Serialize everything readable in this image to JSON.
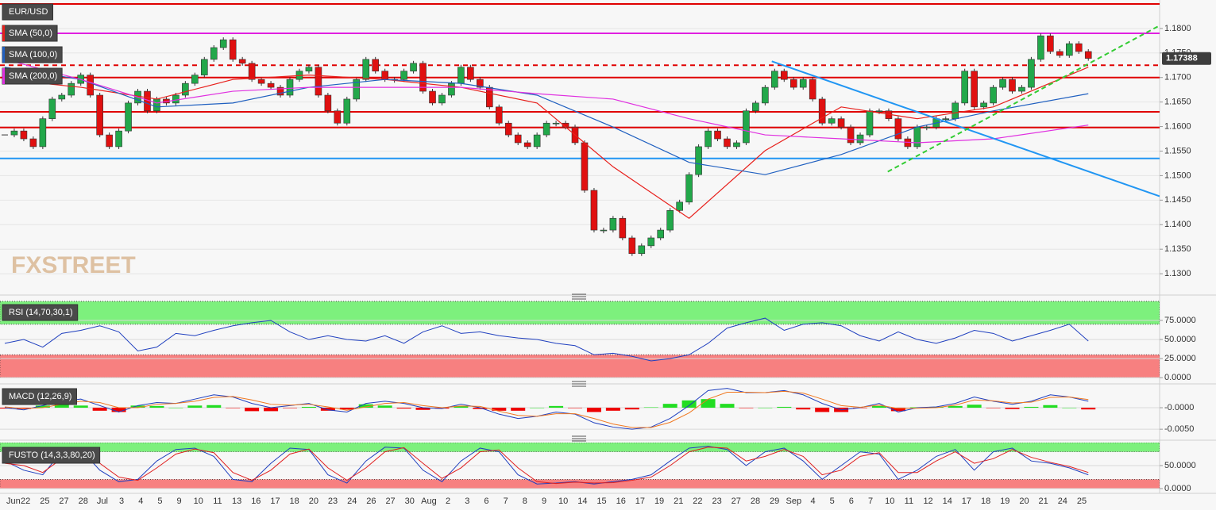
{
  "chart_data": [
    {
      "type": "candlestick",
      "symbol": "EUR/USD",
      "watermark": "FXSTREET",
      "up_color": "#22a84a",
      "down_color": "#e01010",
      "closes": [
        1.1583,
        1.1591,
        1.1575,
        1.1559,
        1.1616,
        1.1656,
        1.1664,
        1.1688,
        1.1705,
        1.1664,
        1.1583,
        1.1559,
        1.1591,
        1.1648,
        1.1672,
        1.1632,
        1.1656,
        1.1648,
        1.1664,
        1.1688,
        1.1705,
        1.1737,
        1.1761,
        1.1777,
        1.1737,
        1.1729,
        1.1696,
        1.1688,
        1.168,
        1.1664,
        1.1696,
        1.1713,
        1.1721,
        1.1664,
        1.1632,
        1.1607,
        1.1656,
        1.1696,
        1.1737,
        1.1713,
        1.1696,
        1.1696,
        1.1713,
        1.1729,
        1.1672,
        1.1648,
        1.1664,
        1.1688,
        1.1721,
        1.1696,
        1.168,
        1.164,
        1.1607,
        1.1583,
        1.1567,
        1.1559,
        1.1583,
        1.1607,
        1.1607,
        1.1599,
        1.1567,
        1.147,
        1.1389,
        1.1389,
        1.1413,
        1.1373,
        1.1341,
        1.1357,
        1.1373,
        1.1389,
        1.1429,
        1.1446,
        1.1502,
        1.1559,
        1.1591,
        1.1575,
        1.1559,
        1.1567,
        1.1632,
        1.1648,
        1.168,
        1.1713,
        1.1696,
        1.168,
        1.1696,
        1.1656,
        1.1607,
        1.1616,
        1.1599,
        1.1567,
        1.1583,
        1.1632,
        1.1632,
        1.1616,
        1.1575,
        1.1559,
        1.1599,
        1.1599,
        1.1616,
        1.1616,
        1.1648,
        1.1713,
        1.164,
        1.1648,
        1.168,
        1.1696,
        1.1672,
        1.168,
        1.1737,
        1.1785,
        1.1753,
        1.1745,
        1.1769,
        1.1753,
        1.1739
      ],
      "xlim": [
        -0.5,
        121.5
      ],
      "ylim": [
        1.1263,
        1.1858
      ],
      "yticks": [
        {
          "value": 1.13,
          "label": "1.1300"
        },
        {
          "value": 1.135,
          "label": "1.1350"
        },
        {
          "value": 1.14,
          "label": "1.1400"
        },
        {
          "value": 1.145,
          "label": "1.1450"
        },
        {
          "value": 1.15,
          "label": "1.1500"
        },
        {
          "value": 1.155,
          "label": "1.1550"
        },
        {
          "value": 1.16,
          "label": "1.1600"
        },
        {
          "value": 1.165,
          "label": "1.1650"
        },
        {
          "value": 1.17,
          "label": "1.1700"
        },
        {
          "value": 1.175,
          "label": "1.1750"
        },
        {
          "value": 1.18,
          "label": "1.1800"
        }
      ],
      "grid": true,
      "last_price": 1.17388,
      "categories": [
        "Jun",
        "22",
        "25",
        "27",
        "28",
        "Jul",
        "3",
        "4",
        "5",
        "9",
        "10",
        "11",
        "13",
        "16",
        "17",
        "18",
        "20",
        "23",
        "24",
        "26",
        "27",
        "30",
        "Aug",
        "2",
        "3",
        "6",
        "7",
        "8",
        "9",
        "10",
        "14",
        "15",
        "16",
        "17",
        "19",
        "21",
        "22",
        "23",
        "27",
        "28",
        "29",
        "Sep",
        "4",
        "5",
        "6",
        "7",
        "10",
        "11",
        "12",
        "14",
        "17",
        "18",
        "19",
        "20",
        "21",
        "24",
        "25"
      ],
      "series": [
        {
          "name": "SMA (50,0)",
          "color": "#e8201c",
          "x": [
            0,
            8,
            16,
            24,
            32,
            40,
            48,
            56,
            64,
            72,
            80,
            88,
            96,
            104,
            114
          ],
          "values": [
            1.1696,
            1.168,
            1.1656,
            1.1696,
            1.1705,
            1.1696,
            1.168,
            1.1648,
            1.1518,
            1.1413,
            1.1551,
            1.164,
            1.1616,
            1.164,
            1.1721
          ]
        },
        {
          "name": "SMA (100,0)",
          "color": "#2060c0",
          "x": [
            0,
            8,
            16,
            24,
            32,
            40,
            48,
            56,
            64,
            72,
            80,
            88,
            96,
            104,
            114
          ],
          "values": [
            1.1721,
            1.1696,
            1.164,
            1.1648,
            1.168,
            1.1696,
            1.1688,
            1.1664,
            1.1599,
            1.1527,
            1.1502,
            1.1543,
            1.1599,
            1.1632,
            1.1667
          ]
        },
        {
          "name": "SMA (200,0)",
          "color": "#e030e0",
          "x": [
            0,
            8,
            16,
            24,
            32,
            40,
            48,
            56,
            64,
            72,
            80,
            88,
            96,
            104,
            114
          ],
          "values": [
            1.1737,
            1.1696,
            1.1648,
            1.1672,
            1.168,
            1.168,
            1.168,
            1.1667,
            1.1656,
            1.1616,
            1.1583,
            1.1575,
            1.1567,
            1.1575,
            1.1603
          ]
        }
      ],
      "levels": [
        {
          "value": 1.185,
          "color": "#e00000",
          "dashed": false
        },
        {
          "value": 1.179,
          "color": "#e020e0",
          "dashed": false
        },
        {
          "value": 1.1725,
          "color": "#e00000",
          "dashed": true
        },
        {
          "value": 1.17,
          "color": "#e00000",
          "dashed": false
        },
        {
          "value": 1.163,
          "color": "#e00000",
          "dashed": false
        },
        {
          "value": 1.1598,
          "color": "#e00000",
          "dashed": false
        },
        {
          "value": 1.1535,
          "color": "#2196f3",
          "dashed": false
        }
      ],
      "trendlines": [
        {
          "color": "#2196f3",
          "dashed": false,
          "x": [
            80.7,
            121.5
          ],
          "values": [
            1.1733,
            1.1458
          ]
        },
        {
          "color": "#33cc33",
          "dashed": true,
          "x": [
            92.9,
            121.5
          ],
          "values": [
            1.1508,
            1.1806
          ]
        }
      ]
    },
    {
      "type": "line",
      "title": "RSI (14,70,30,1)",
      "x": [
        0,
        2,
        4,
        6,
        8,
        10,
        12,
        14,
        16,
        18,
        20,
        22,
        24,
        26,
        28,
        30,
        32,
        34,
        36,
        38,
        40,
        42,
        44,
        46,
        48,
        50,
        52,
        54,
        56,
        58,
        60,
        62,
        64,
        66,
        68,
        70,
        72,
        74,
        76,
        78,
        80,
        82,
        84,
        86,
        88,
        90,
        92,
        94,
        96,
        98,
        100,
        102,
        104,
        106,
        108,
        110,
        112,
        114
      ],
      "xlim": [
        -0.5,
        121.5
      ],
      "ylim": [
        -4,
        102
      ],
      "yticks": [
        {
          "value": 0,
          "label": "0.0000"
        },
        {
          "value": 25,
          "label": "25.0000"
        },
        {
          "value": 50,
          "label": "50.0000"
        },
        {
          "value": 75,
          "label": "75.0000"
        }
      ],
      "bands": [
        {
          "from": 70,
          "to": 100,
          "color": "#7df07d"
        },
        {
          "from": 0,
          "to": 30,
          "color": "#f78080"
        }
      ],
      "series": [
        {
          "color": "#1f3fbf",
          "values": [
            45,
            50,
            40,
            58,
            62,
            68,
            60,
            35,
            40,
            58,
            55,
            62,
            68,
            72,
            75,
            60,
            50,
            55,
            50,
            48,
            55,
            45,
            60,
            68,
            58,
            60,
            55,
            52,
            50,
            45,
            42,
            30,
            32,
            28,
            22,
            25,
            30,
            45,
            65,
            72,
            78,
            62,
            70,
            72,
            68,
            55,
            48,
            60,
            50,
            45,
            52,
            62,
            58,
            48,
            55,
            62,
            70,
            48
          ]
        }
      ]
    },
    {
      "type": "macd",
      "title": "MACD (12,26,9)",
      "x": [
        0,
        2,
        4,
        6,
        8,
        10,
        12,
        14,
        16,
        18,
        20,
        22,
        24,
        26,
        28,
        30,
        32,
        34,
        36,
        38,
        40,
        42,
        44,
        46,
        48,
        50,
        52,
        54,
        56,
        58,
        60,
        62,
        64,
        66,
        68,
        70,
        72,
        74,
        76,
        78,
        80,
        82,
        84,
        86,
        88,
        90,
        92,
        94,
        96,
        98,
        100,
        102,
        104,
        106,
        108,
        110,
        112,
        114
      ],
      "xlim": [
        -0.5,
        121.5
      ],
      "ylim": [
        -0.007,
        0.0048
      ],
      "yticks": [
        {
          "value": -0.005,
          "label": "-0.0050"
        },
        {
          "value": 0,
          "label": "-0.0000"
        }
      ],
      "histogram": {
        "up_color": "#22dd22",
        "down_color": "#ee0000",
        "values": [
          -0.0002,
          -0.0003,
          0.0005,
          0.0007,
          0.0005,
          -0.0007,
          -0.001,
          0.0005,
          0.0004,
          0.0,
          0.0005,
          0.0006,
          -0.0001,
          -0.0008,
          -0.0008,
          -0.0001,
          0.0002,
          -0.0007,
          -0.0004,
          0.0008,
          0.0005,
          -0.0002,
          -0.0005,
          -0.0002,
          0.0004,
          -0.0003,
          -0.0007,
          -0.0007,
          0.0,
          0.0004,
          -0.0001,
          -0.001,
          -0.0007,
          -0.0004,
          0.0001,
          0.0009,
          0.0017,
          0.002,
          0.0009,
          -0.0001,
          0.0,
          0.0002,
          -0.0004,
          -0.001,
          -0.001,
          -0.0001,
          0.0004,
          -0.0008,
          0.0001,
          0.0002,
          0.0004,
          0.0007,
          -0.0001,
          -0.0003,
          0.0002,
          0.0006,
          0.0,
          -0.0004
        ]
      },
      "series": [
        {
          "color": "#1f3fbf",
          "values": [
            0.0,
            -0.0005,
            0.0005,
            0.0015,
            0.002,
            0.0005,
            -0.001,
            0.0005,
            0.0012,
            0.001,
            0.002,
            0.003,
            0.0025,
            0.001,
            0.0,
            0.0005,
            0.001,
            -0.0005,
            -0.001,
            0.001,
            0.0015,
            0.001,
            0.0,
            -0.0002,
            0.0008,
            0.0,
            -0.0015,
            -0.0025,
            -0.002,
            -0.001,
            -0.0015,
            -0.0035,
            -0.0045,
            -0.005,
            -0.0045,
            -0.0025,
            0.0005,
            0.004,
            0.0045,
            0.0035,
            0.0035,
            0.004,
            0.003,
            0.001,
            -0.0005,
            0.0,
            0.001,
            -0.001,
            0.0,
            0.0002,
            0.001,
            0.0025,
            0.0015,
            0.0008,
            0.0015,
            0.003,
            0.0025,
            0.0015
          ]
        },
        {
          "color": "#f07820",
          "values": [
            0.0002,
            -0.0002,
            0.0,
            0.0008,
            0.0015,
            0.0012,
            0.0,
            0.0,
            0.0008,
            0.001,
            0.0015,
            0.0024,
            0.0026,
            0.0018,
            0.0008,
            0.0006,
            0.0008,
            0.0002,
            -0.0006,
            0.0002,
            0.001,
            0.0012,
            0.0005,
            0.0,
            0.0004,
            0.0003,
            -0.0008,
            -0.0018,
            -0.002,
            -0.0014,
            -0.0014,
            -0.0025,
            -0.0038,
            -0.0046,
            -0.0046,
            -0.0034,
            -0.0012,
            0.002,
            0.0036,
            0.0036,
            0.0035,
            0.0038,
            0.0034,
            0.002,
            0.0005,
            0.0001,
            0.0006,
            -0.0002,
            -0.0001,
            0.0,
            0.0006,
            0.0018,
            0.0016,
            0.0011,
            0.0013,
            0.0024,
            0.0025,
            0.0019
          ]
        }
      ]
    },
    {
      "type": "line",
      "title": "FUSTO (14,3,3,80,20)",
      "x": [
        0,
        2,
        4,
        6,
        8,
        10,
        12,
        14,
        16,
        18,
        20,
        22,
        24,
        26,
        28,
        30,
        32,
        34,
        36,
        38,
        40,
        42,
        44,
        46,
        48,
        50,
        52,
        54,
        56,
        58,
        60,
        62,
        64,
        66,
        68,
        70,
        72,
        74,
        76,
        78,
        80,
        82,
        84,
        86,
        88,
        90,
        92,
        94,
        96,
        98,
        100,
        102,
        104,
        106,
        108,
        110,
        112,
        114
      ],
      "xlim": [
        -0.5,
        121.5
      ],
      "ylim": [
        -6.9,
        100
      ],
      "yticks": [
        {
          "value": 0,
          "label": "0.0000"
        },
        {
          "value": 50,
          "label": "50.0000"
        }
      ],
      "bands": [
        {
          "from": 80,
          "to": 100,
          "color": "#7df07d"
        },
        {
          "from": 0,
          "to": 20,
          "color": "#f78080"
        }
      ],
      "series": [
        {
          "color": "#1f3fbf",
          "values": [
            60,
            40,
            30,
            80,
            85,
            40,
            15,
            20,
            60,
            85,
            88,
            70,
            20,
            15,
            55,
            88,
            85,
            30,
            12,
            60,
            90,
            88,
            40,
            15,
            60,
            88,
            80,
            30,
            10,
            12,
            15,
            10,
            15,
            20,
            30,
            60,
            88,
            92,
            85,
            50,
            80,
            88,
            60,
            20,
            50,
            80,
            75,
            20,
            40,
            70,
            85,
            40,
            80,
            88,
            60,
            55,
            45,
            30
          ]
        },
        {
          "color": "#e02020",
          "values": [
            55,
            50,
            35,
            65,
            82,
            55,
            25,
            18,
            45,
            75,
            86,
            78,
            35,
            18,
            40,
            75,
            86,
            45,
            18,
            45,
            80,
            89,
            55,
            22,
            45,
            80,
            84,
            45,
            15,
            11,
            14,
            12,
            13,
            18,
            25,
            50,
            80,
            90,
            88,
            60,
            70,
            85,
            70,
            30,
            40,
            70,
            78,
            35,
            35,
            60,
            80,
            55,
            65,
            85,
            68,
            57,
            48,
            35
          ]
        }
      ]
    }
  ]
}
